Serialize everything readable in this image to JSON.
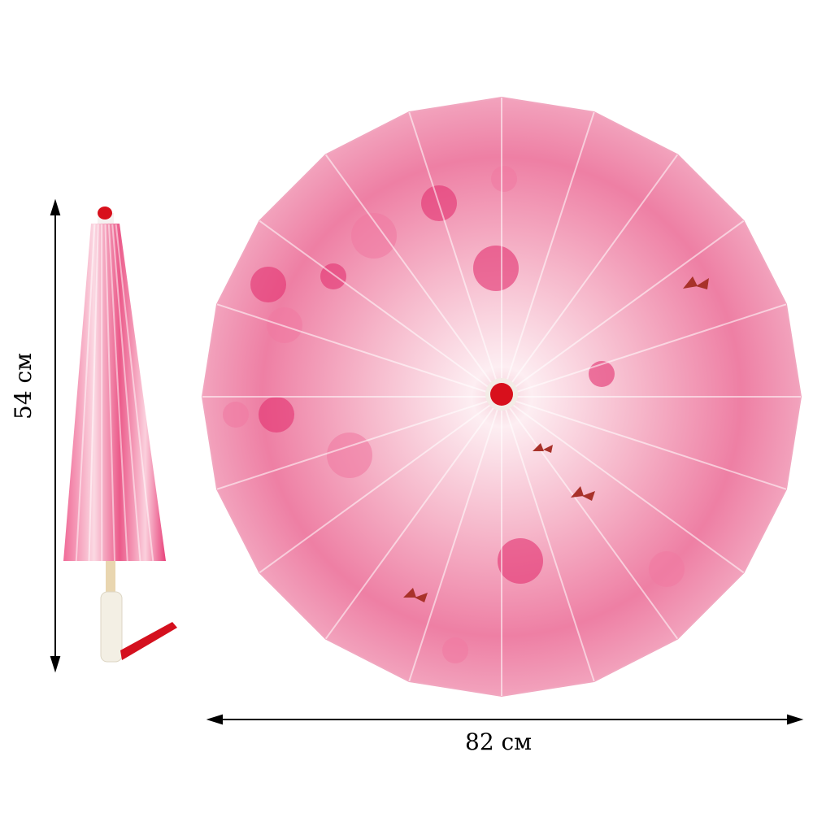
{
  "dimensions": {
    "height_label": "54 см",
    "width_label": "82 см"
  },
  "colors": {
    "canopy_pink": "#e8417a",
    "canopy_light": "#fbe3ea",
    "tip_red": "#d8101c",
    "handle": "#f3efe4",
    "tassel": "#d4101e"
  },
  "icons": [
    "closed-umbrella",
    "open-umbrella",
    "cherry-blossom-pattern",
    "butterfly",
    "dimension-arrow"
  ]
}
